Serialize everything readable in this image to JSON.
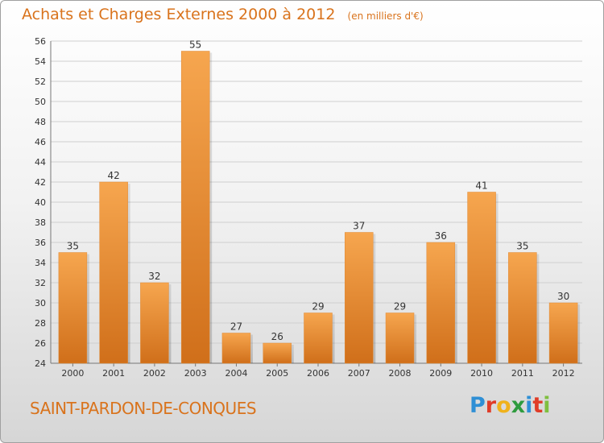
{
  "header": {
    "title": "Achats et Charges Externes 2000 à 2012",
    "subtitle": "(en milliers d'€)"
  },
  "footer": {
    "commune": "SAINT-PARDON-DE-CONQUES",
    "logo": {
      "letters": [
        "P",
        "r",
        "o",
        "x",
        "i",
        "t",
        "i"
      ],
      "colors": [
        "#2f8fd5",
        "#e03c28",
        "#f0b21b",
        "#2e9b3e",
        "#2f8fd5",
        "#e03c28",
        "#7fbf3f"
      ]
    }
  },
  "chart_data": {
    "type": "bar",
    "title": "Achats et Charges Externes 2000 à 2012",
    "subtitle": "(en milliers d'€)",
    "categories": [
      "2000",
      "2001",
      "2002",
      "2003",
      "2004",
      "2005",
      "2006",
      "2007",
      "2008",
      "2009",
      "2010",
      "2011",
      "2012"
    ],
    "values": [
      35,
      42,
      32,
      55,
      27,
      26,
      29,
      37,
      29,
      36,
      41,
      35,
      30
    ],
    "ylim": [
      24,
      56
    ],
    "yticks": [
      24,
      26,
      28,
      30,
      32,
      34,
      36,
      38,
      40,
      42,
      44,
      46,
      48,
      50,
      52,
      54,
      56
    ],
    "grid": true,
    "bar_color": "#f29a42",
    "bar_color_dark": "#d4741e",
    "label_color": "#333333"
  }
}
